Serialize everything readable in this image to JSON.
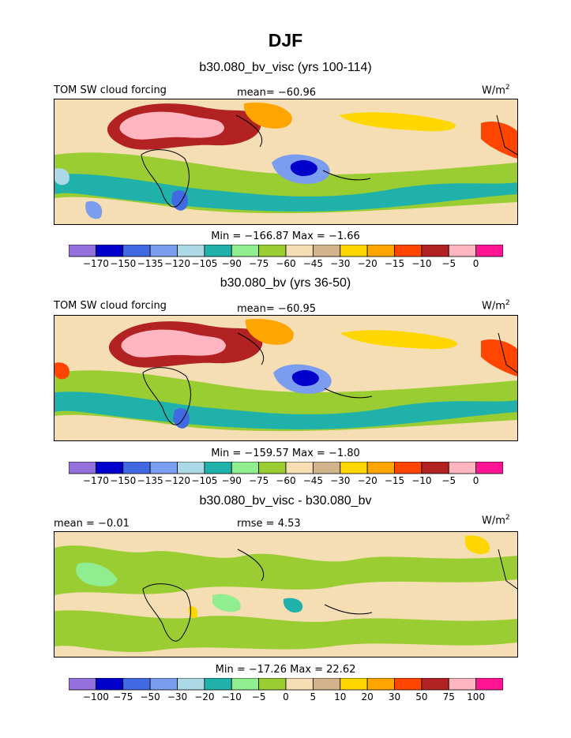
{
  "page_title": "DJF",
  "chart_data": [
    {
      "type": "heatmap",
      "title": "b30.080_bv_visc (yrs 100-114)",
      "field": "TOM SW cloud forcing",
      "stats": {
        "mean_label": "mean=",
        "mean": "−60.96",
        "minmax": "Min = −166.87  Max =   −1.66"
      },
      "unit_base": "W/m",
      "unit_exp": "2",
      "colorbar": {
        "colors": [
          "#9370db",
          "#0000cd",
          "#4169e1",
          "#7b9df0",
          "#add8e6",
          "#20b2aa",
          "#90ee90",
          "#9acd32",
          "#f5deb3",
          "#d2b48c",
          "#ffd700",
          "#ffa500",
          "#ff4500",
          "#b22222",
          "#ffb6c1",
          "#ff1493"
        ],
        "levels": [
          "−170",
          "−150",
          "−135",
          "−120",
          "−105",
          "−90",
          "−75",
          "−60",
          "−45",
          "−30",
          "−20",
          "−15",
          "−10",
          "−5",
          "0"
        ]
      }
    },
    {
      "type": "heatmap",
      "title": "b30.080_bv (yrs 36-50)",
      "field": "TOM SW cloud forcing",
      "stats": {
        "mean_label": "mean=",
        "mean": "−60.95",
        "minmax": "Min = −159.57  Max =   −1.80"
      },
      "unit_base": "W/m",
      "unit_exp": "2",
      "colorbar": {
        "colors": [
          "#9370db",
          "#0000cd",
          "#4169e1",
          "#7b9df0",
          "#add8e6",
          "#20b2aa",
          "#90ee90",
          "#9acd32",
          "#f5deb3",
          "#d2b48c",
          "#ffd700",
          "#ffa500",
          "#ff4500",
          "#b22222",
          "#ffb6c1",
          "#ff1493"
        ],
        "levels": [
          "−170",
          "−150",
          "−135",
          "−120",
          "−105",
          "−90",
          "−75",
          "−60",
          "−45",
          "−30",
          "−20",
          "−15",
          "−10",
          "−5",
          "0"
        ]
      }
    },
    {
      "type": "heatmap",
      "title": "b30.080_bv_visc - b30.080_bv",
      "stats": {
        "mean_label": "mean =",
        "mean": "−0.01",
        "rmse_label": "rmse =",
        "rmse": "4.53",
        "minmax": "Min = −17.26  Max =   22.62"
      },
      "unit_base": "W/m",
      "unit_exp": "2",
      "colorbar": {
        "colors": [
          "#9370db",
          "#0000cd",
          "#4169e1",
          "#7b9df0",
          "#add8e6",
          "#20b2aa",
          "#90ee90",
          "#9acd32",
          "#f5deb3",
          "#d2b48c",
          "#ffd700",
          "#ffa500",
          "#ff4500",
          "#b22222",
          "#ffb6c1",
          "#ff1493"
        ],
        "levels": [
          "−100",
          "−75",
          "−50",
          "−30",
          "−20",
          "−10",
          "−5",
          "0",
          "5",
          "10",
          "20",
          "30",
          "50",
          "75",
          "100"
        ]
      }
    }
  ]
}
